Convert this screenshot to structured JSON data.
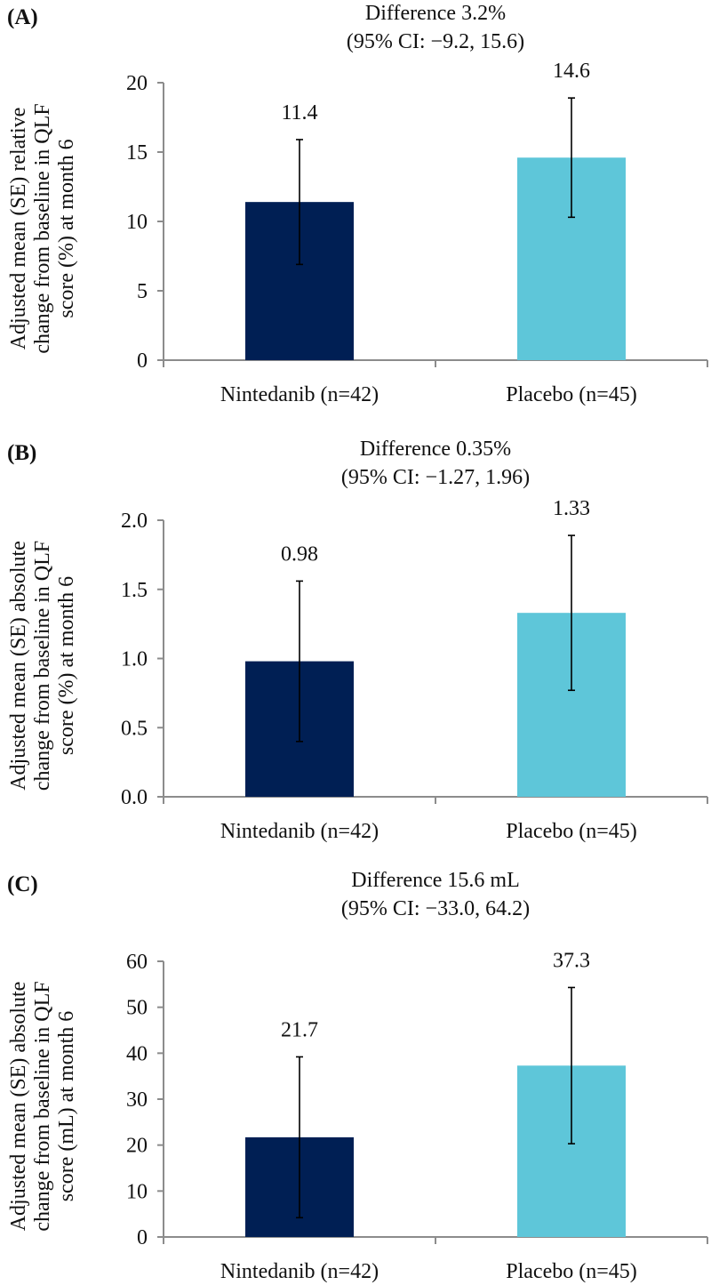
{
  "chart_data": [
    {
      "type": "bar",
      "panel": "(A)",
      "title": [
        "Difference 3.2%",
        "(95% CI: −9.2, 15.6)"
      ],
      "ylabel": [
        "Adjusted mean (SE) relative",
        "change from baseline in QLF",
        "score (%) at month 6"
      ],
      "xlabel": "",
      "categories": [
        "Nintedanib (n=42)",
        "Placebo (n=45)"
      ],
      "values": [
        11.4,
        14.6
      ],
      "value_labels": [
        "11.4",
        "14.6"
      ],
      "error_low": [
        6.9,
        10.3
      ],
      "error_high": [
        15.9,
        18.9
      ],
      "ylim": [
        0,
        20
      ],
      "yticks": [
        0,
        5,
        10,
        15,
        20
      ],
      "ytick_labels": [
        "0",
        "5",
        "10",
        "15",
        "20"
      ],
      "colors": [
        "#001f54",
        "#5ec6d9"
      ],
      "grid": false,
      "legend": "none"
    },
    {
      "type": "bar",
      "panel": "(B)",
      "title": [
        "Difference 0.35%",
        "(95% CI: −1.27, 1.96)"
      ],
      "ylabel": [
        "Adjusted mean (SE) absolute",
        "change from baseline in QLF",
        "score (%) at month 6"
      ],
      "xlabel": "",
      "categories": [
        "Nintedanib (n=42)",
        "Placebo (n=45)"
      ],
      "values": [
        0.98,
        1.33
      ],
      "value_labels": [
        "0.98",
        "1.33"
      ],
      "error_low": [
        0.4,
        0.77
      ],
      "error_high": [
        1.56,
        1.89
      ],
      "ylim": [
        0,
        2.0
      ],
      "yticks": [
        0,
        0.5,
        1.0,
        1.5,
        2.0
      ],
      "ytick_labels": [
        "0.0",
        "0.5",
        "1.0",
        "1.5",
        "2.0"
      ],
      "colors": [
        "#001f54",
        "#5ec6d9"
      ],
      "grid": false,
      "legend": "none"
    },
    {
      "type": "bar",
      "panel": "(C)",
      "title": [
        "Difference 15.6 mL",
        "(95% CI: −33.0, 64.2)"
      ],
      "ylabel": [
        "Adjusted mean (SE) absolute",
        "change from baseline in QLF",
        "score (mL) at month 6"
      ],
      "xlabel": "",
      "categories": [
        "Nintedanib (n=42)",
        "Placebo (n=45)"
      ],
      "values": [
        21.7,
        37.3
      ],
      "value_labels": [
        "21.7",
        "37.3"
      ],
      "error_low": [
        4.2,
        20.3
      ],
      "error_high": [
        39.2,
        54.3
      ],
      "ylim": [
        0,
        60
      ],
      "yticks": [
        0,
        10,
        20,
        30,
        40,
        50,
        60
      ],
      "ytick_labels": [
        "0",
        "10",
        "20",
        "30",
        "40",
        "50",
        "60"
      ],
      "colors": [
        "#001f54",
        "#5ec6d9"
      ],
      "grid": false,
      "legend": "none"
    }
  ]
}
